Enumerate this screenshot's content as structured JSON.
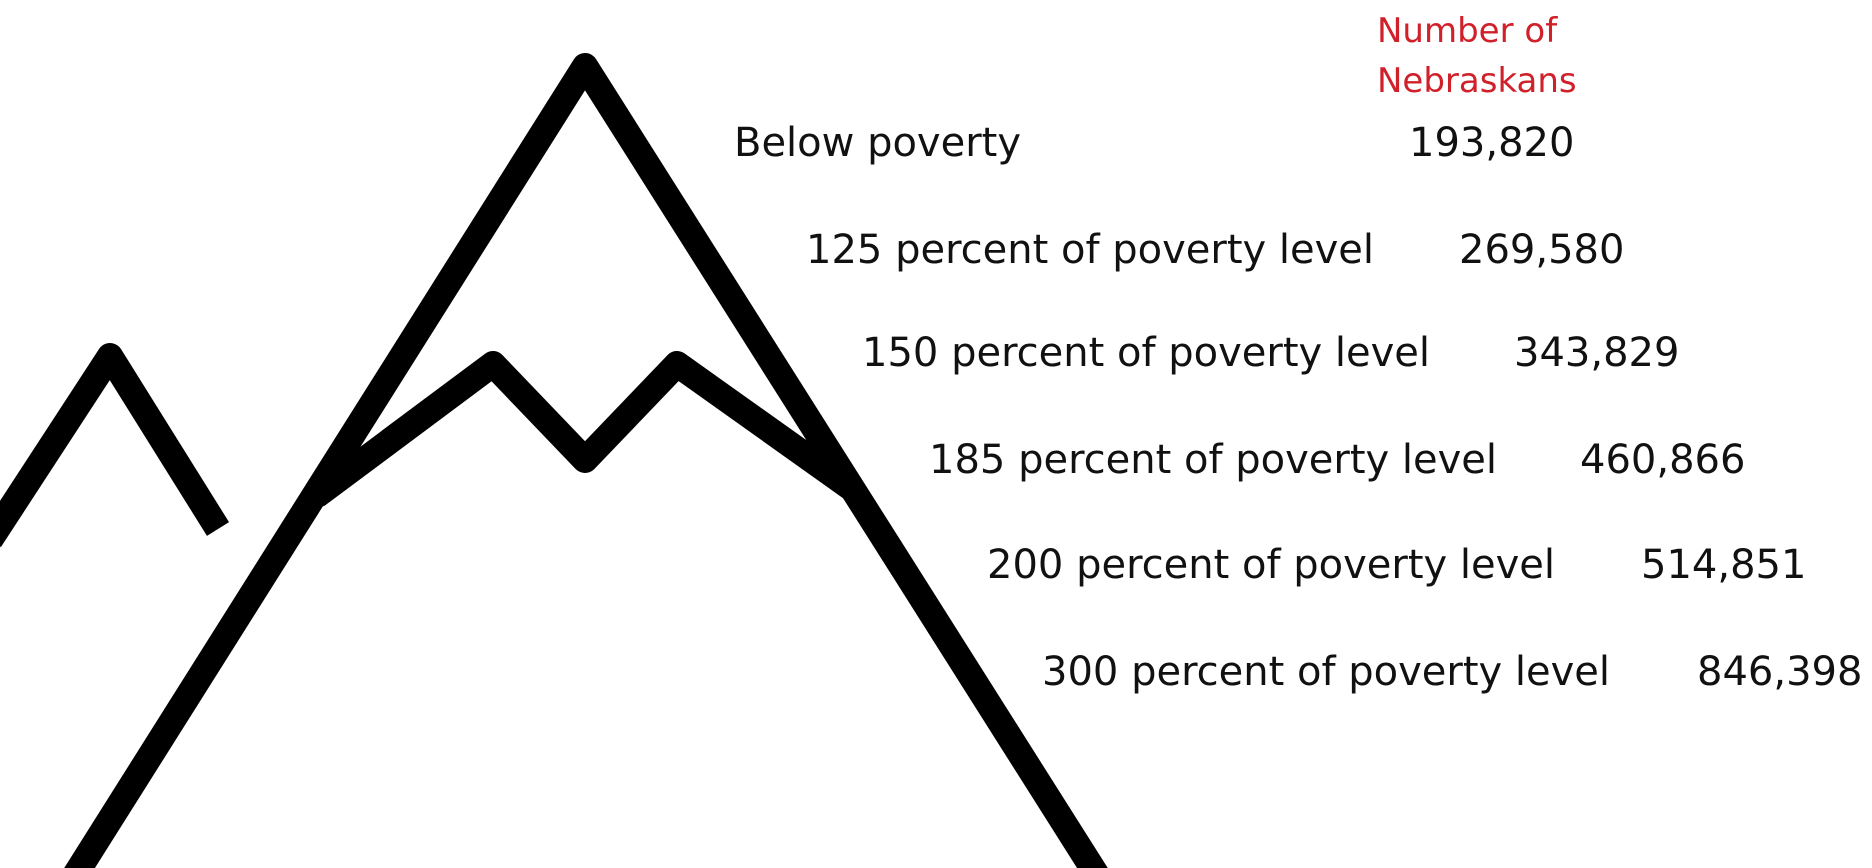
{
  "header": "Number of Nebraskans",
  "rows": [
    {
      "label": "Below poverty",
      "value": "193,820"
    },
    {
      "label": "125 percent of poverty level",
      "value": "269,580"
    },
    {
      "label": "150 percent of poverty level",
      "value": "343,829"
    },
    {
      "label": "185 percent of poverty level",
      "value": "460,866"
    },
    {
      "label": "200 percent of poverty level",
      "value": "514,851"
    },
    {
      "label": "300 percent of poverty level",
      "value": "846,398"
    }
  ]
}
